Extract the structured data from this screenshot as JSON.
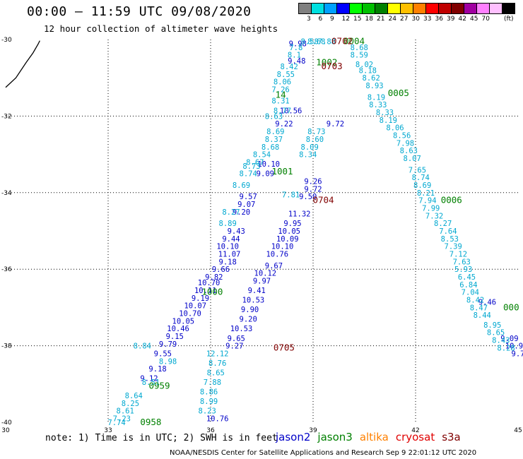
{
  "header": {
    "title": "00:00 – 11:59 UTC 09/08/2020",
    "subtitle": "12 hour collection of altimeter wave heights"
  },
  "legend": {
    "unit_label": "(ft)",
    "swh_labels": [
      "3",
      "6",
      "9",
      "12",
      "15",
      "18",
      "21",
      "24",
      "27",
      "30",
      "33",
      "36",
      "39",
      "42",
      "45",
      "70"
    ],
    "swh_colors": [
      "#808080",
      "#00e0e0",
      "#00a0ff",
      "#0000ff",
      "#00ff00",
      "#00c000",
      "#008000",
      "#ffff00",
      "#ffc000",
      "#ff8000",
      "#ff0000",
      "#c00000",
      "#800000",
      "#a000a0",
      "#ff80ff",
      "#ffc0ff",
      "#000000"
    ],
    "satellites": [
      {
        "name": "jason2",
        "color": "#0000c8"
      },
      {
        "name": "jason3",
        "color": "#008000"
      },
      {
        "name": "altika",
        "color": "#ff8000"
      },
      {
        "name": "cryosat",
        "color": "#e00000"
      },
      {
        "name": "s3a",
        "color": "#800000"
      }
    ]
  },
  "footer": {
    "note": "note: 1) Time is in UTC; 2) SWH is in feet",
    "credit": "NOAA/NESDIS Center for Satellite Applications and Research   Sep  9 22:01:12 UTC 2020"
  },
  "chart_data": {
    "type": "scatter",
    "title": "00:00 – 11:59 UTC 09/08/2020",
    "subtitle": "12 hour collection of altimeter wave heights",
    "x_ticks": [
      "30",
      "33",
      "36",
      "39",
      "42",
      "45"
    ],
    "y_ticks": [
      "-30",
      "-32",
      "-34",
      "-36",
      "-38",
      "-40"
    ],
    "xlim": [
      30,
      45
    ],
    "ylim": [
      -40,
      -30
    ],
    "grid": true,
    "coast": [
      [
        30.0,
        -31.25
      ],
      [
        30.3,
        -31.0
      ],
      [
        30.6,
        -30.6
      ],
      [
        30.8,
        -30.35
      ],
      [
        30.95,
        -30.12
      ],
      [
        31.0,
        -30.03
      ]
    ],
    "tracks": [
      {
        "name": "jason2-left",
        "color": "#0000c8",
        "points": [
          [
            38.55,
            -30.1,
            "9.98"
          ],
          [
            38.52,
            -30.55,
            "9.48"
          ],
          [
            38.35,
            -31.85,
            "10.56"
          ],
          [
            38.15,
            -32.2,
            "9.22"
          ],
          [
            37.7,
            -33.25,
            "10.10"
          ],
          [
            37.6,
            -33.5,
            "9.09"
          ],
          [
            37.1,
            -34.1,
            "9.57"
          ],
          [
            37.05,
            -34.3,
            "9.07"
          ],
          [
            36.9,
            -34.5,
            "9.20"
          ],
          [
            36.75,
            -35.0,
            "9.43"
          ],
          [
            36.6,
            -35.2,
            "9.44"
          ],
          [
            36.5,
            -35.4,
            "10.10"
          ],
          [
            36.55,
            -35.6,
            "11.07"
          ],
          [
            36.5,
            -35.8,
            "9.18"
          ],
          [
            36.3,
            -36.0,
            "9.66"
          ],
          [
            36.1,
            -36.2,
            "9.82"
          ],
          [
            35.95,
            -36.35,
            "10.70"
          ],
          [
            35.85,
            -36.55,
            "10.11"
          ],
          [
            35.7,
            -36.75,
            "9.19"
          ],
          [
            35.55,
            -36.95,
            "10.07"
          ],
          [
            35.4,
            -37.15,
            "10.70"
          ],
          [
            35.2,
            -37.35,
            "10.05"
          ],
          [
            35.05,
            -37.55,
            "10.46"
          ],
          [
            34.95,
            -37.75,
            "9.15"
          ],
          [
            34.75,
            -37.95,
            "9.79"
          ],
          [
            34.6,
            -38.2,
            "9.55"
          ],
          [
            34.45,
            -38.6,
            "9.18"
          ],
          [
            34.2,
            -38.85,
            "9.12"
          ]
        ]
      },
      {
        "name": "jason2-mid",
        "color": "#0000c8",
        "points": [
          [
            39.65,
            -32.2,
            "9.72"
          ],
          [
            39.0,
            -33.7,
            "9.26"
          ],
          [
            39.0,
            -33.9,
            "9.72"
          ],
          [
            38.85,
            -34.1,
            "9.50"
          ],
          [
            38.6,
            -34.55,
            "11.32"
          ],
          [
            38.4,
            -34.8,
            "9.95"
          ],
          [
            38.3,
            -35.0,
            "10.05"
          ],
          [
            38.25,
            -35.2,
            "10.09"
          ],
          [
            38.1,
            -35.4,
            "10.10"
          ],
          [
            37.95,
            -35.6,
            "10.76"
          ],
          [
            37.85,
            -35.9,
            "9.67"
          ],
          [
            37.6,
            -36.1,
            "10.12"
          ],
          [
            37.5,
            -36.3,
            "9.97"
          ],
          [
            37.35,
            -36.55,
            "9.41"
          ],
          [
            37.25,
            -36.8,
            "10.53"
          ],
          [
            37.15,
            -37.05,
            "9.90"
          ],
          [
            37.1,
            -37.3,
            "9.20"
          ],
          [
            36.9,
            -37.55,
            "10.53"
          ],
          [
            36.75,
            -37.8,
            "9.65"
          ],
          [
            36.7,
            -38.0,
            "9.27"
          ],
          [
            36.2,
            -39.9,
            "10.76"
          ]
        ]
      },
      {
        "name": "jason2-right",
        "color": "#0000c8",
        "points": [
          [
            44.1,
            -36.85,
            "9.46"
          ],
          [
            44.75,
            -37.8,
            "9.09"
          ],
          [
            44.95,
            -38.0,
            "10.94"
          ],
          [
            45.0,
            -38.2,
            "9.7"
          ]
        ]
      },
      {
        "name": "altika-cyan-left",
        "color": "#00a8d0",
        "points": [
          [
            38.5,
            -30.2,
            "7.8"
          ],
          [
            38.45,
            -30.4,
            "8.1"
          ],
          [
            38.3,
            -30.7,
            "8.42"
          ],
          [
            38.2,
            -30.9,
            "8.55"
          ],
          [
            38.1,
            -31.1,
            "8.06"
          ],
          [
            38.05,
            -31.3,
            "7.26"
          ],
          [
            38.05,
            -31.6,
            "8.31"
          ],
          [
            38.1,
            -31.85,
            "8.77"
          ],
          [
            37.85,
            -32.0,
            "8.63"
          ],
          [
            37.9,
            -32.4,
            "8.69"
          ],
          [
            37.85,
            -32.6,
            "8.37"
          ],
          [
            37.75,
            -32.8,
            "8.68"
          ],
          [
            37.5,
            -33.0,
            "8.54"
          ],
          [
            37.3,
            -33.2,
            "8.67"
          ],
          [
            37.2,
            -33.3,
            "8.73"
          ],
          [
            37.1,
            -33.5,
            "8.74"
          ],
          [
            36.9,
            -33.8,
            "8.69"
          ],
          [
            36.6,
            -34.5,
            "8.27"
          ],
          [
            36.5,
            -34.8,
            "8.89"
          ],
          [
            34.75,
            -38.4,
            "8.98"
          ],
          [
            34.25,
            -38.95,
            "8.51"
          ],
          [
            33.75,
            -39.3,
            "8.64"
          ],
          [
            33.65,
            -39.5,
            "8.25"
          ],
          [
            33.5,
            -39.7,
            "8.61"
          ],
          [
            33.4,
            -39.9,
            "7.23"
          ],
          [
            33.25,
            -40.0,
            "7.74"
          ],
          [
            34.0,
            -38.0,
            "8.84"
          ]
        ]
      },
      {
        "name": "altika-cyan-mid",
        "color": "#00a8d0",
        "points": [
          [
            39.1,
            -32.4,
            "8.73"
          ],
          [
            39.05,
            -32.6,
            "8.60"
          ],
          [
            38.9,
            -32.8,
            "8.09"
          ],
          [
            38.85,
            -33.0,
            "8.34"
          ],
          [
            38.35,
            -34.05,
            "7.81"
          ],
          [
            36.2,
            -38.2,
            "12.12"
          ],
          [
            36.2,
            -38.45,
            "8.76"
          ],
          [
            36.15,
            -38.7,
            "8.65"
          ],
          [
            36.05,
            -38.95,
            "7.88"
          ],
          [
            35.95,
            -39.2,
            "8.86"
          ],
          [
            35.95,
            -39.45,
            "8.99"
          ],
          [
            35.9,
            -39.7,
            "8.23"
          ]
        ]
      },
      {
        "name": "altika-cyan-right",
        "color": "#00a8d0",
        "points": [
          [
            38.9,
            -30.05,
            "8.58"
          ],
          [
            39.1,
            -30.05,
            "8.68"
          ],
          [
            39.4,
            -30.05,
            "7.88"
          ],
          [
            40.35,
            -30.2,
            "8.68"
          ],
          [
            40.35,
            -30.4,
            "8.59"
          ],
          [
            40.5,
            -30.65,
            "8.02"
          ],
          [
            40.6,
            -30.8,
            "8.18"
          ],
          [
            40.7,
            -31.0,
            "8.62"
          ],
          [
            40.8,
            -31.2,
            "8.93"
          ],
          [
            40.85,
            -31.5,
            "8.19"
          ],
          [
            40.9,
            -31.7,
            "8.33"
          ],
          [
            41.1,
            -31.9,
            "8.33"
          ],
          [
            41.2,
            -32.1,
            "8.19"
          ],
          [
            41.4,
            -32.3,
            "8.06"
          ],
          [
            41.6,
            -32.5,
            "8.56"
          ],
          [
            41.7,
            -32.7,
            "7.98"
          ],
          [
            41.8,
            -32.9,
            "8.63"
          ],
          [
            41.9,
            -33.1,
            "8.07"
          ],
          [
            42.05,
            -33.4,
            "7.65"
          ],
          [
            42.15,
            -33.6,
            "8.74"
          ],
          [
            42.2,
            -33.8,
            "8.69"
          ],
          [
            42.3,
            -34.0,
            "8.21"
          ],
          [
            42.35,
            -34.2,
            "7.94"
          ],
          [
            42.45,
            -34.4,
            "7.99"
          ],
          [
            42.55,
            -34.6,
            "7.32"
          ],
          [
            42.8,
            -34.8,
            "8.27"
          ],
          [
            42.95,
            -35.0,
            "7.64"
          ],
          [
            43.0,
            -35.2,
            "8.53"
          ],
          [
            43.1,
            -35.4,
            "7.39"
          ],
          [
            43.25,
            -35.6,
            "7.12"
          ],
          [
            43.35,
            -35.8,
            "7.63"
          ],
          [
            43.4,
            -36.0,
            "5.93"
          ],
          [
            43.5,
            -36.2,
            "6.45"
          ],
          [
            43.55,
            -36.4,
            "6.84"
          ],
          [
            43.6,
            -36.6,
            "7.04"
          ],
          [
            43.75,
            -36.8,
            "8.42"
          ],
          [
            43.85,
            -37.0,
            "8.47"
          ],
          [
            43.95,
            -37.2,
            "8.44"
          ],
          [
            44.25,
            -37.45,
            "8.95"
          ],
          [
            44.35,
            -37.65,
            "8.65"
          ],
          [
            44.5,
            -37.85,
            "8.43"
          ],
          [
            44.65,
            -38.05,
            "8.28"
          ]
        ]
      },
      {
        "name": "jason3-times",
        "color": "#008000",
        "points": [
          [
            40.2,
            -30.05,
            "0004"
          ],
          [
            39.4,
            -30.6,
            "1002"
          ],
          [
            41.5,
            -31.4,
            "0005"
          ],
          [
            38.1,
            -33.45,
            "1001"
          ],
          [
            43.05,
            -34.2,
            "0006"
          ],
          [
            44.8,
            -37.0,
            "000"
          ],
          [
            36.05,
            -36.6,
            "1000"
          ],
          [
            34.5,
            -39.05,
            "0959"
          ],
          [
            34.25,
            -40.0,
            "0958"
          ],
          [
            38.05,
            -31.45,
            "14"
          ]
        ]
      },
      {
        "name": "s3a-times",
        "color": "#800000",
        "points": [
          [
            39.85,
            -30.05,
            "0702"
          ],
          [
            39.55,
            -30.7,
            "0703"
          ],
          [
            39.3,
            -34.2,
            "0704"
          ],
          [
            38.15,
            -38.05,
            "0705"
          ]
        ]
      }
    ]
  }
}
